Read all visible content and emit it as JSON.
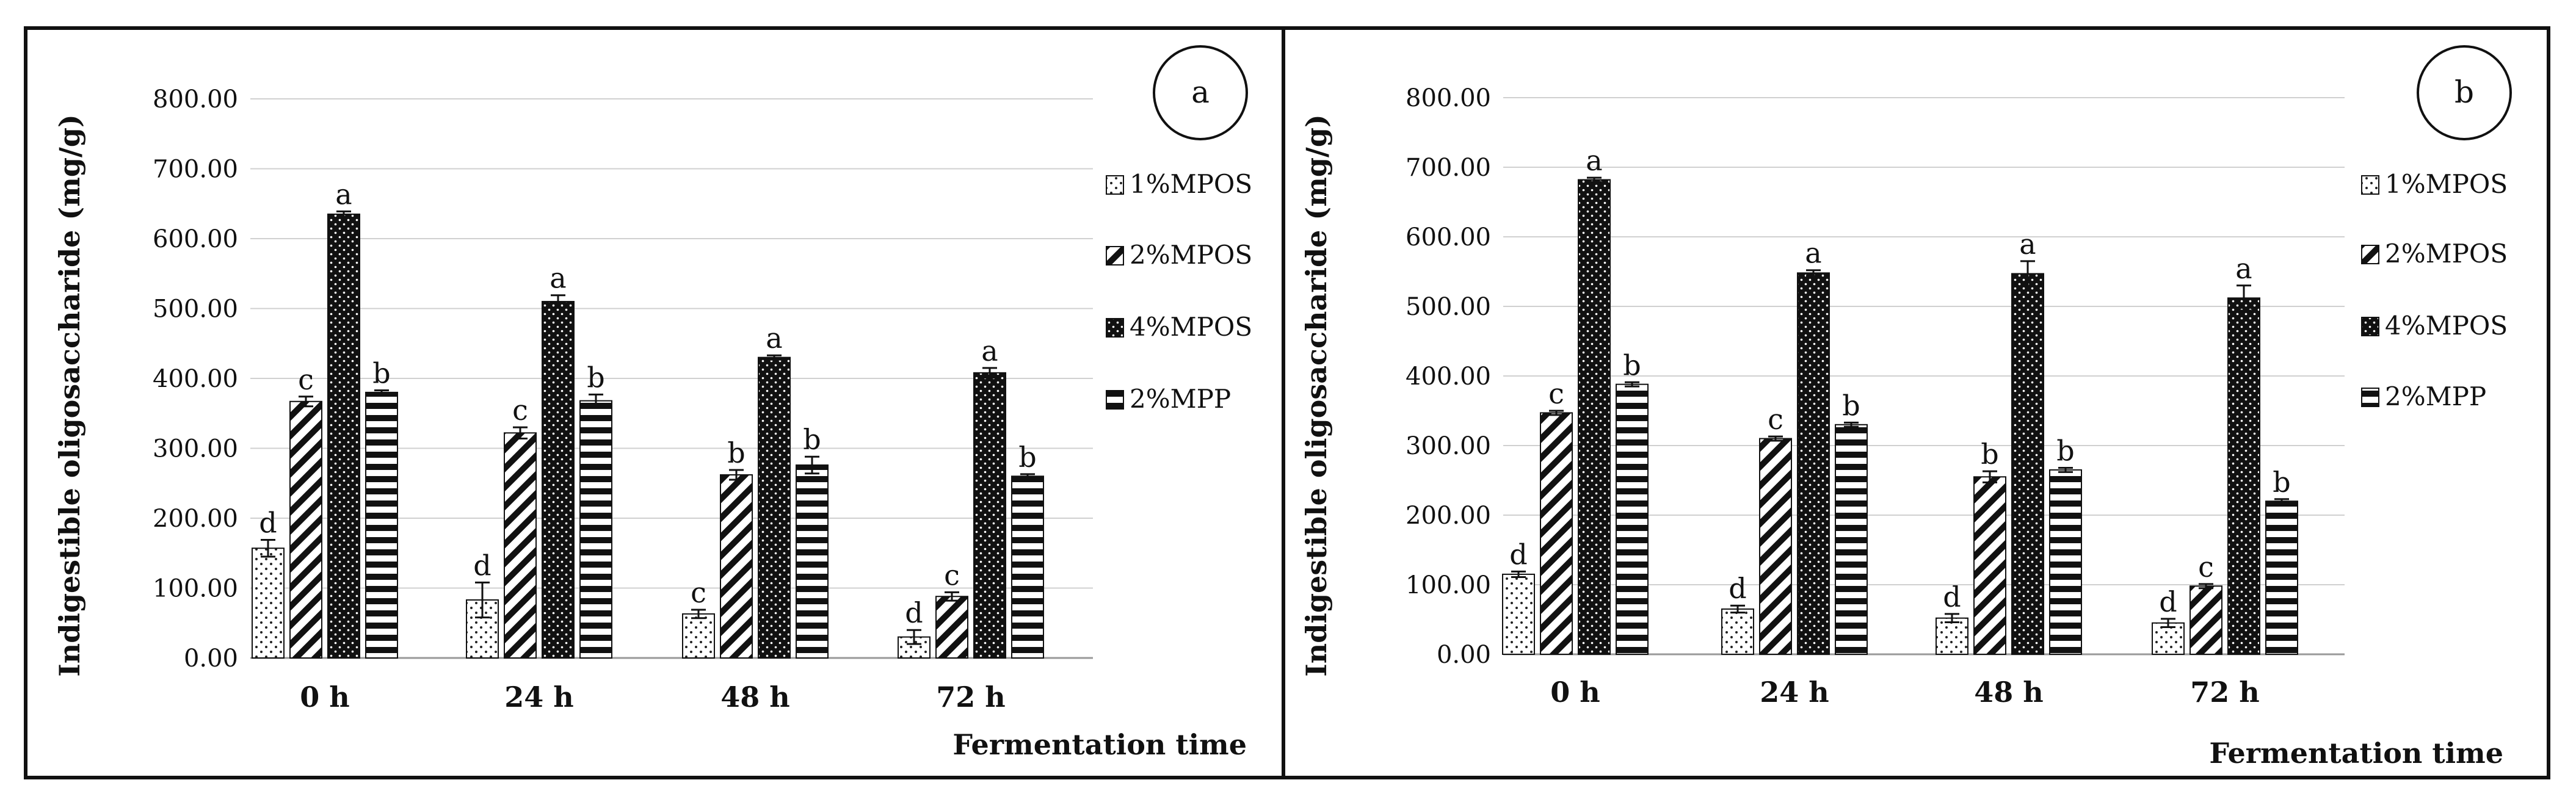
{
  "chart_data": [
    {
      "type": "bar",
      "panel_label": "a",
      "title": "",
      "ylabel": "Indigestible oligosaccharide (mg/g)",
      "xlabel": "Fermentation time",
      "ylim": [
        0,
        800
      ],
      "yticks": [
        "0.00",
        "100.00",
        "200.00",
        "300.00",
        "400.00",
        "500.00",
        "600.00",
        "700.00",
        "800.00"
      ],
      "categories": [
        "0 h",
        "24 h",
        "48 h",
        "72 h"
      ],
      "series": [
        {
          "name": "1%MPOS",
          "values": [
            157,
            83,
            63,
            30
          ],
          "errors": [
            12,
            25,
            6,
            10
          ],
          "letters": [
            "d",
            "d",
            "c",
            "d"
          ],
          "pattern": "dots"
        },
        {
          "name": "2%MPOS",
          "values": [
            367,
            322,
            262,
            88
          ],
          "errors": [
            7,
            8,
            7,
            6
          ],
          "letters": [
            "c",
            "c",
            "b",
            "c"
          ],
          "pattern": "diag"
        },
        {
          "name": "4%MPOS",
          "values": [
            635,
            510,
            430,
            408
          ],
          "errors": [
            4,
            9,
            3,
            7
          ],
          "letters": [
            "a",
            "a",
            "a",
            "a"
          ],
          "pattern": "darkdots"
        },
        {
          "name": "2%MPP",
          "values": [
            380,
            368,
            276,
            260
          ],
          "errors": [
            3,
            9,
            12,
            3
          ],
          "letters": [
            "b",
            "b",
            "b",
            "b"
          ],
          "pattern": "hlines"
        }
      ]
    },
    {
      "type": "bar",
      "panel_label": "b",
      "title": "",
      "ylabel": "Indigestible oligosaccharide (mg/g)",
      "xlabel": "Fermentation time",
      "ylim": [
        0,
        800
      ],
      "yticks": [
        "0.00",
        "100.00",
        "200.00",
        "300.00",
        "400.00",
        "500.00",
        "600.00",
        "700.00",
        "800.00"
      ],
      "categories": [
        "0 h",
        "24 h",
        "48 h",
        "72 h"
      ],
      "series": [
        {
          "name": "1%MPOS",
          "values": [
            115,
            65,
            52,
            45
          ],
          "errors": [
            4,
            5,
            6,
            6
          ],
          "letters": [
            "d",
            "d",
            "d",
            "d"
          ],
          "pattern": "dots"
        },
        {
          "name": "2%MPOS",
          "values": [
            347,
            310,
            255,
            98
          ],
          "errors": [
            3,
            3,
            8,
            3
          ],
          "letters": [
            "c",
            "c",
            "b",
            "c"
          ],
          "pattern": "diag"
        },
        {
          "name": "4%MPOS",
          "values": [
            682,
            548,
            547,
            512
          ],
          "errors": [
            3,
            4,
            18,
            18
          ],
          "letters": [
            "a",
            "a",
            "a",
            "a"
          ],
          "pattern": "darkdots"
        },
        {
          "name": "2%MPP",
          "values": [
            388,
            330,
            265,
            220
          ],
          "errors": [
            3,
            3,
            3,
            3
          ],
          "letters": [
            "b",
            "b",
            "b",
            "b"
          ],
          "pattern": "hlines"
        }
      ]
    }
  ]
}
